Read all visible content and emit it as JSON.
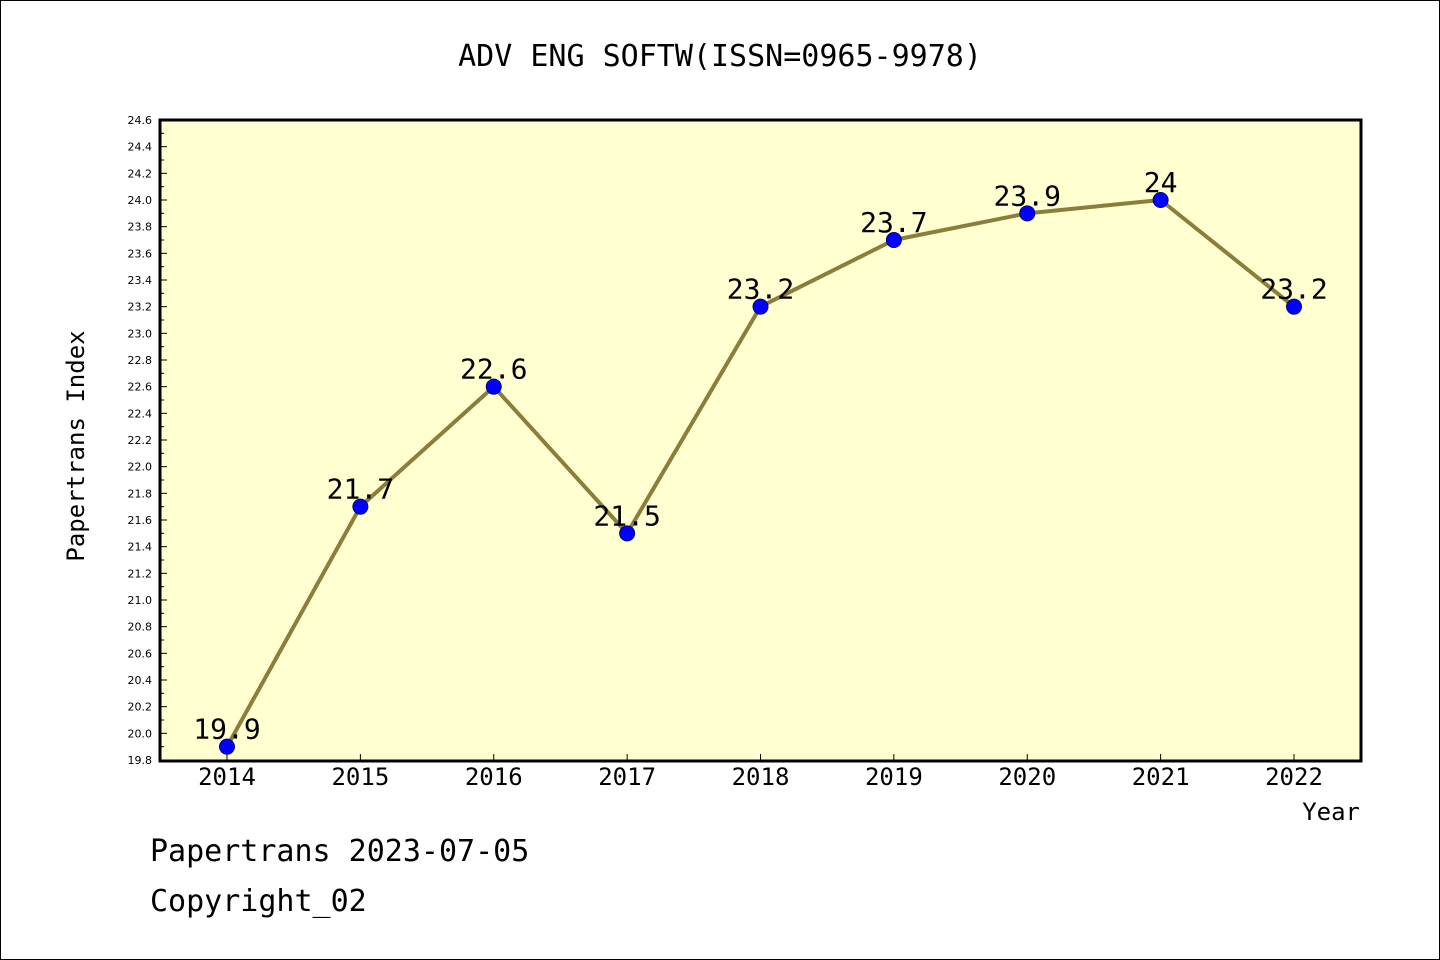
{
  "chart_data": {
    "type": "line",
    "title": "ADV ENG SOFTW(ISSN=0965-9978)",
    "xlabel": "Year",
    "ylabel": "Papertrans Index",
    "categories": [
      "2014",
      "2015",
      "2016",
      "2017",
      "2018",
      "2019",
      "2020",
      "2021",
      "2022"
    ],
    "values": [
      19.9,
      21.7,
      22.6,
      21.5,
      23.2,
      23.7,
      23.9,
      24.0,
      23.2
    ],
    "data_labels": [
      "19.9",
      "21.7",
      "22.6",
      "21.5",
      "23.2",
      "23.7",
      "23.9",
      "24",
      "23.2"
    ],
    "ylim": [
      19.8,
      24.6
    ],
    "y_ticks": [
      "19.8",
      "20.0",
      "20.2",
      "20.4",
      "20.6",
      "20.8",
      "21.0",
      "21.2",
      "21.4",
      "21.6",
      "21.8",
      "22.0",
      "22.2",
      "22.4",
      "22.6",
      "22.8",
      "23.0",
      "23.2",
      "23.4",
      "23.6",
      "23.8",
      "24.0",
      "24.2",
      "24.4",
      "24.6"
    ],
    "grid": false,
    "legend": "none",
    "colors": {
      "plot_background": "#ffffd0",
      "line": "#8b7d3a",
      "marker": "#0000ff",
      "marker_edge": "#000080"
    }
  },
  "footer": {
    "line1": "Papertrans 2023-07-05",
    "line2": "Copyright_02"
  }
}
